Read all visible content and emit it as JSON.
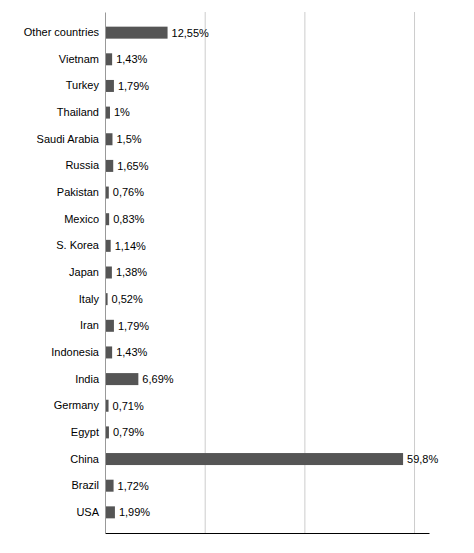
{
  "chart_data": {
    "type": "bar",
    "orientation": "horizontal",
    "categories": [
      "Other countries",
      "Vietnam",
      "Turkey",
      "Thailand",
      "Saudi Arabia",
      "Russia",
      "Pakistan",
      "Mexico",
      "S. Korea",
      "Japan",
      "Italy",
      "Iran",
      "Indonesia",
      "India",
      "Germany",
      "Egypt",
      "China",
      "Brazil",
      "USA"
    ],
    "values": [
      12.55,
      1.43,
      1.79,
      1.0,
      1.5,
      1.65,
      0.76,
      0.83,
      1.14,
      1.38,
      0.52,
      1.79,
      1.43,
      6.69,
      0.71,
      0.79,
      59.8,
      1.72,
      1.99
    ],
    "value_labels": [
      "12,55%",
      "1,43%",
      "1,79%",
      "1%",
      "1,5%",
      "1,65%",
      "0,76%",
      "0,83%",
      "1,14%",
      "1,38%",
      "0,52%",
      "1,79%",
      "1,43%",
      "6,69%",
      "0,71%",
      "0,79%",
      "59,8%",
      "1,72%",
      "1,99%"
    ],
    "color": "#555555",
    "xlim": [
      0,
      65
    ],
    "xticks": [
      20,
      40,
      62
    ],
    "grid": true,
    "data_labels": true,
    "tick_labels": "y"
  }
}
